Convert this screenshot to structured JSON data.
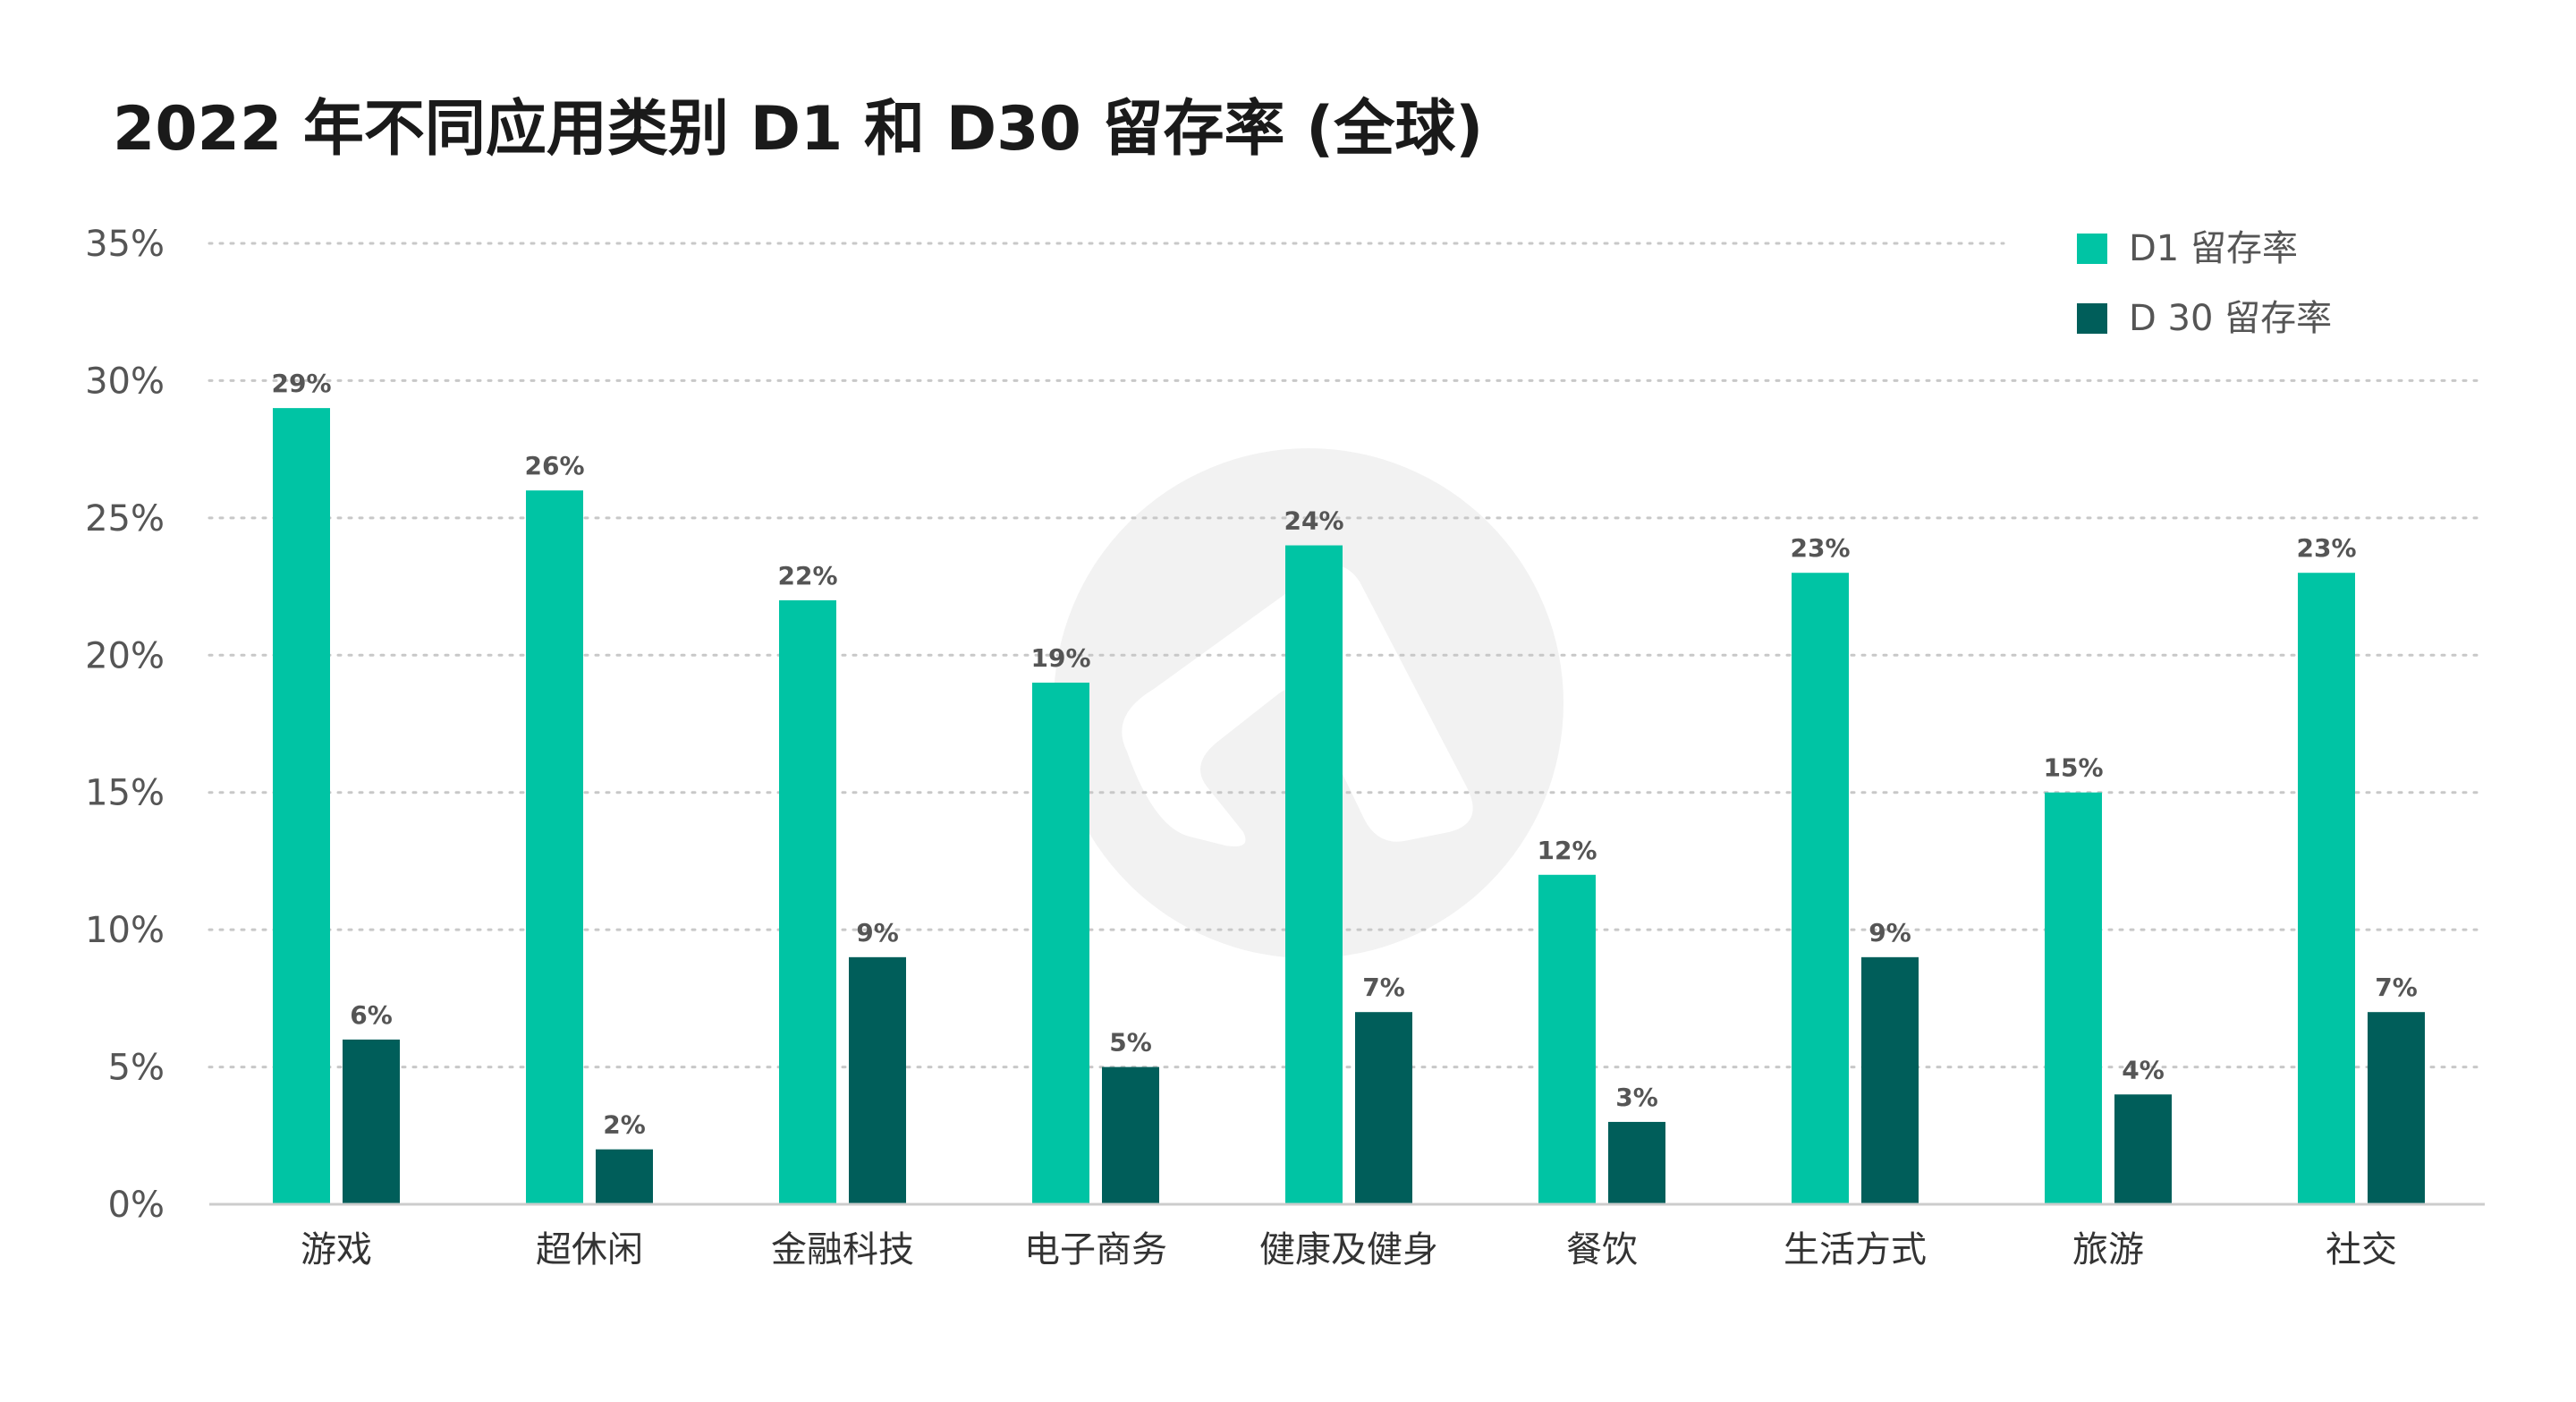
{
  "chart_data": {
    "type": "bar",
    "title": "2022 年不同应用类别 D1 和 D30 留存率 (全球)",
    "xlabel": "",
    "ylabel": "",
    "ylim": [
      0,
      35
    ],
    "yticks": [
      "0%",
      "5%",
      "10%",
      "15%",
      "20%",
      "25%",
      "30%",
      "35%"
    ],
    "ytick_values": [
      0,
      5,
      10,
      15,
      20,
      25,
      30,
      35
    ],
    "grid": true,
    "legend_position": "top-right",
    "categories": [
      "游戏",
      "超休闲",
      "金融科技",
      "电子商务",
      "健康及健身",
      "餐饮",
      "生活方式",
      "旅游",
      "社交"
    ],
    "series": [
      {
        "name": "D1 留存率",
        "color": "#00c4a4",
        "values": [
          29,
          26,
          22,
          19,
          24,
          12,
          23,
          15,
          23
        ],
        "labels": [
          "29%",
          "26%",
          "22%",
          "19%",
          "24%",
          "12%",
          "23%",
          "15%",
          "23%"
        ]
      },
      {
        "name": "D 30 留存率",
        "color": "#005e5a",
        "values": [
          6,
          2,
          9,
          5,
          7,
          3,
          9,
          4,
          7
        ],
        "labels": [
          "6%",
          "2%",
          "9%",
          "5%",
          "7%",
          "3%",
          "9%",
          "4%",
          "7%"
        ]
      }
    ]
  }
}
